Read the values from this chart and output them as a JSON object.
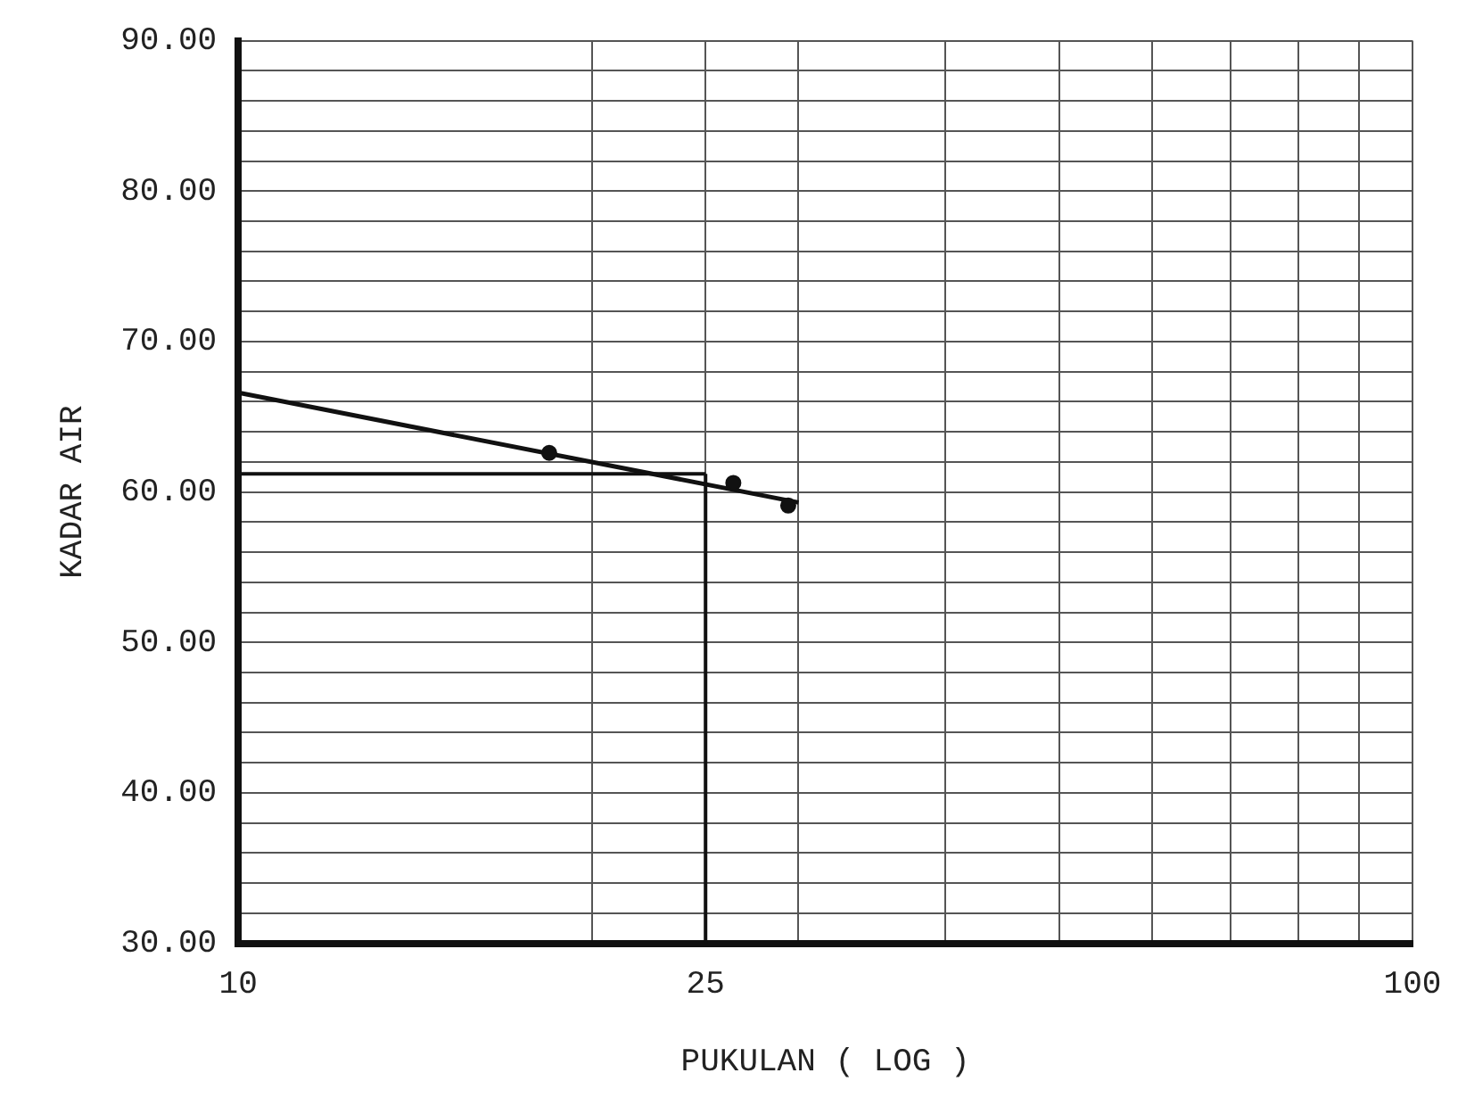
{
  "chart_data": {
    "type": "scatter",
    "xlabel": "PUKULAN ( LOG )",
    "ylabel": "KADAR AIR",
    "log": "x",
    "grid": true,
    "legend": false,
    "marker": "circle",
    "xlim": [
      10,
      100
    ],
    "ylim": [
      30,
      90
    ],
    "xticks": [
      10,
      {
        "value": 20,
        "label": null
      },
      25,
      {
        "value": 30,
        "label": null
      },
      {
        "value": 40,
        "label": null
      },
      {
        "value": 50,
        "label": null
      },
      {
        "value": 60,
        "label": null
      },
      {
        "value": 70,
        "label": null
      },
      {
        "value": 80,
        "label": null
      },
      {
        "value": 90,
        "label": null
      },
      100
    ],
    "yticks": [
      {
        "value": 30,
        "label": "30.00"
      },
      {
        "value": 32,
        "label": null
      },
      {
        "value": 34,
        "label": null
      },
      {
        "value": 36,
        "label": null
      },
      {
        "value": 38,
        "label": null
      },
      {
        "value": 40,
        "label": "40.00"
      },
      {
        "value": 42,
        "label": null
      },
      {
        "value": 44,
        "label": null
      },
      {
        "value": 46,
        "label": null
      },
      {
        "value": 48,
        "label": null
      },
      {
        "value": 50,
        "label": "50.00"
      },
      {
        "value": 52,
        "label": null
      },
      {
        "value": 54,
        "label": null
      },
      {
        "value": 56,
        "label": null
      },
      {
        "value": 58,
        "label": null
      },
      {
        "value": 60,
        "label": "60.00"
      },
      {
        "value": 62,
        "label": null
      },
      {
        "value": 64,
        "label": null
      },
      {
        "value": 66,
        "label": null
      },
      {
        "value": 68,
        "label": null
      },
      {
        "value": 70,
        "label": "70.00"
      },
      {
        "value": 72,
        "label": null
      },
      {
        "value": 74,
        "label": null
      },
      {
        "value": 76,
        "label": null
      },
      {
        "value": 78,
        "label": null
      },
      {
        "value": 80,
        "label": "80.00"
      },
      {
        "value": 82,
        "label": null
      },
      {
        "value": 84,
        "label": null
      },
      {
        "value": 86,
        "label": null
      },
      {
        "value": 88,
        "label": null
      },
      {
        "value": 90,
        "label": "90.00"
      }
    ],
    "series": [
      {
        "color": "#111111",
        "x": [
          18.4,
          26.4,
          29.4
        ],
        "values": [
          62.6,
          60.6,
          59.1
        ]
      },
      {
        "type": "line",
        "color": "#111111",
        "marker": "none",
        "x": [
          10,
          30
        ],
        "values": [
          66.6,
          59.3
        ]
      }
    ],
    "ref_lines": [
      {
        "axis": "x",
        "value": 25,
        "color": "#111111"
      },
      {
        "axis": "y",
        "value": 61.2,
        "color": "#111111"
      }
    ]
  }
}
